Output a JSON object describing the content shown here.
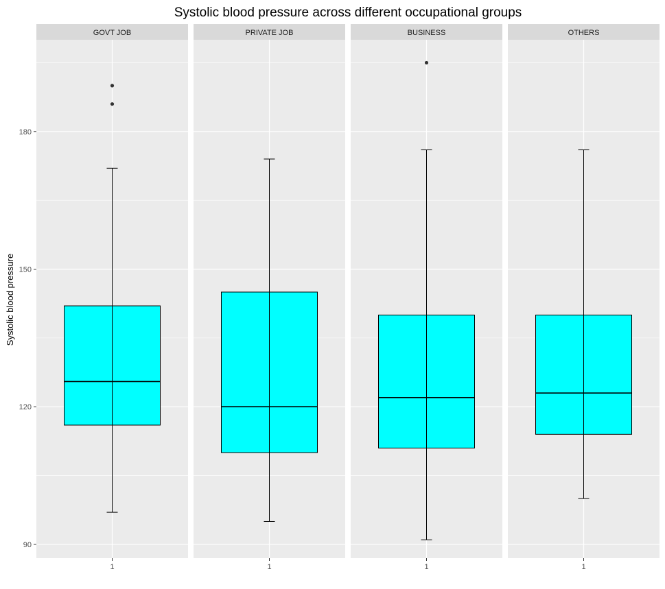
{
  "chart_data": {
    "type": "boxplot",
    "title": "Systolic blood pressure across different occupational groups",
    "xlabel": "",
    "ylabel": "Systolic blood pressure",
    "ylim": [
      87,
      200
    ],
    "yticks": [
      90,
      120,
      150,
      180
    ],
    "x_tick_label": "1",
    "fill_color": "#00ffff",
    "panel_background": "#ebebeb",
    "strip_background": "#d9d9d9",
    "grid": true,
    "facets": [
      {
        "name": "GOVT JOB",
        "whisker_low": 97,
        "q1": 116,
        "median": 125.5,
        "q3": 142,
        "whisker_high": 172,
        "outliers": [
          186,
          190
        ]
      },
      {
        "name": "PRIVATE JOB",
        "whisker_low": 95,
        "q1": 110,
        "median": 120,
        "q3": 145,
        "whisker_high": 174,
        "outliers": []
      },
      {
        "name": "BUSINESS",
        "whisker_low": 91,
        "q1": 111,
        "median": 122,
        "q3": 140,
        "whisker_high": 176,
        "outliers": [
          195
        ]
      },
      {
        "name": "OTHERS",
        "whisker_low": 100,
        "q1": 114,
        "median": 123,
        "q3": 140,
        "whisker_high": 176,
        "outliers": []
      }
    ]
  }
}
